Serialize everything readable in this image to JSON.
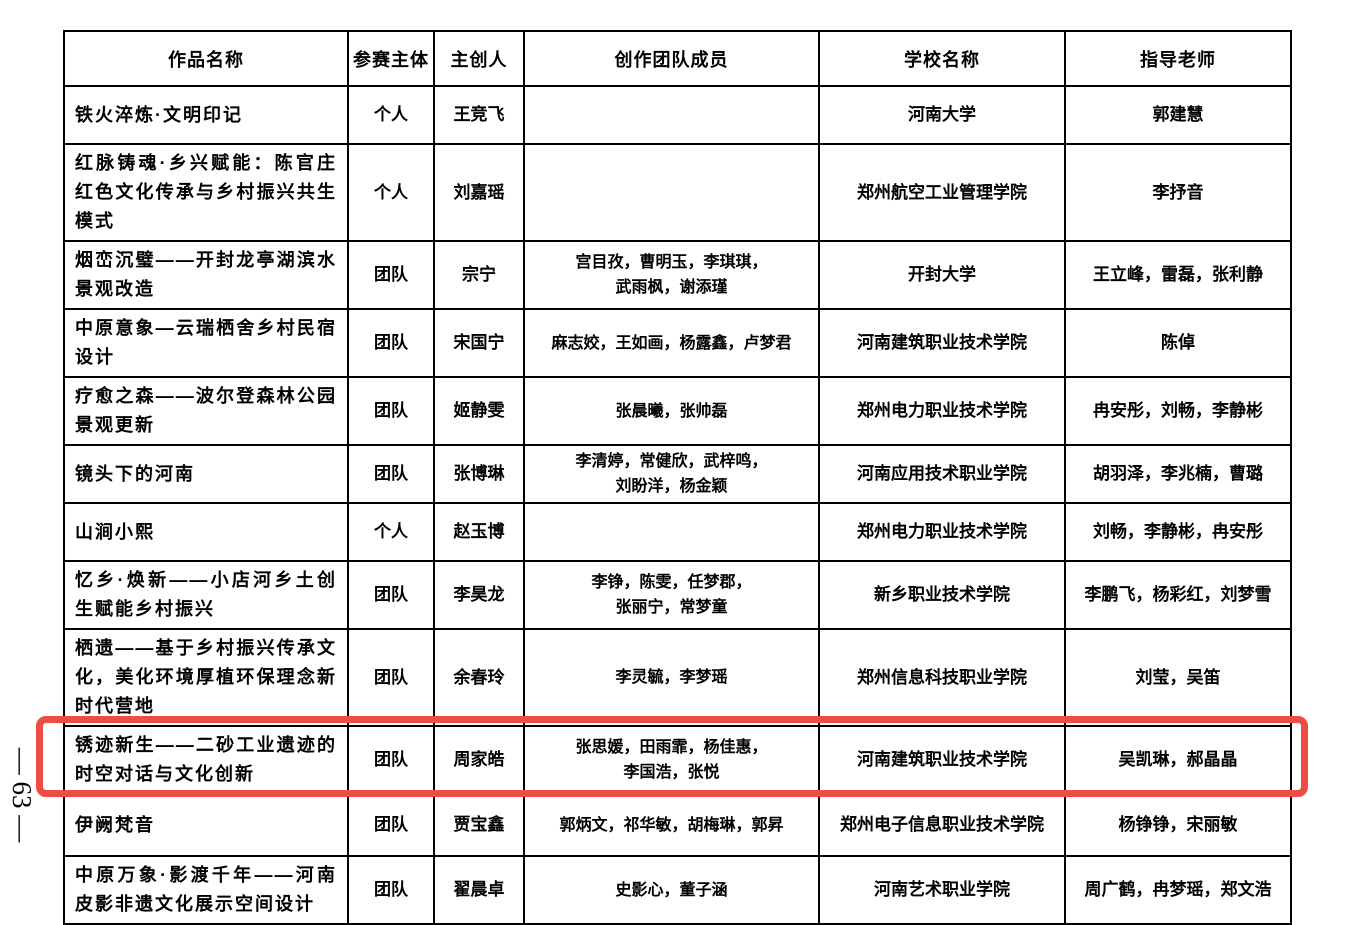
{
  "page": {
    "number_label": "— 63 —"
  },
  "colors": {
    "highlight_border": "#ee4d45",
    "table_border": "#000000"
  },
  "table": {
    "headers": [
      "作品名称",
      "参赛主体",
      "主创人",
      "创作团队成员",
      "学校名称",
      "指导老师"
    ],
    "rows": [
      {
        "title": "铁火淬炼·文明印记",
        "entry_type": "个人",
        "creator": "王竞飞",
        "members": [],
        "school": "河南大学",
        "advisors": "郭建慧",
        "highlighted": false
      },
      {
        "title": "红脉铸魂·乡兴赋能：陈官庄红色文化传承与乡村振兴共生模式",
        "entry_type": "个人",
        "creator": "刘嘉瑶",
        "members": [],
        "school": "郑州航空工业管理学院",
        "advisors": "李抒音",
        "highlighted": false
      },
      {
        "title": "烟峦沉璧——开封龙亭湖滨水景观改造",
        "entry_type": "团队",
        "creator": "宗宁",
        "members": [
          "宫目孜，曹明玉，李琪琪，",
          "武雨枫，谢添瑾"
        ],
        "school": "开封大学",
        "advisors": "王立峰，雷磊，张利静",
        "highlighted": false
      },
      {
        "title": "中原意象—云瑞栖舍乡村民宿设计",
        "entry_type": "团队",
        "creator": "宋国宁",
        "members": [
          "麻志姣，王如画，杨露鑫，卢梦君"
        ],
        "school": "河南建筑职业技术学院",
        "advisors": "陈倬",
        "highlighted": false
      },
      {
        "title": "疗愈之森——波尔登森林公园景观更新",
        "entry_type": "团队",
        "creator": "姬静雯",
        "members": [
          "张晨曦，张帅磊"
        ],
        "school": "郑州电力职业技术学院",
        "advisors": "冉安彤，刘畅，李静彬",
        "highlighted": false
      },
      {
        "title": "镜头下的河南",
        "entry_type": "团队",
        "creator": "张博琳",
        "members": [
          "李清婷，常健欣，武梓鸣，",
          "刘盼洋，杨金颖"
        ],
        "school": "河南应用技术职业学院",
        "advisors": "胡羽泽，李兆楠，曹璐",
        "highlighted": false
      },
      {
        "title": "山涧小熙",
        "entry_type": "个人",
        "creator": "赵玉博",
        "members": [],
        "school": "郑州电力职业技术学院",
        "advisors": "刘畅，李静彬，冉安彤",
        "highlighted": false
      },
      {
        "title": "忆乡·焕新——小店河乡土创生赋能乡村振兴",
        "entry_type": "团队",
        "creator": "李昊龙",
        "members": [
          "李铮，陈雯，任梦郡，",
          "张丽宁，常梦童"
        ],
        "school": "新乡职业技术学院",
        "advisors": "李鹏飞，杨彩红，刘梦雪",
        "highlighted": false
      },
      {
        "title": "栖遗——基于乡村振兴传承文化，美化环境厚植环保理念新时代营地",
        "entry_type": "团队",
        "creator": "余春玲",
        "members": [
          "李灵毓，李梦瑶"
        ],
        "school": "郑州信息科技职业学院",
        "advisors": "刘莹，吴笛",
        "highlighted": false
      },
      {
        "title": "锈迹新生——二砂工业遗迹的时空对话与文化创新",
        "entry_type": "团队",
        "creator": "周家皓",
        "members": [
          "张思媛，田雨霏，杨佳惠，",
          "李国浩，张悦"
        ],
        "school": "河南建筑职业技术学院",
        "advisors": "吴凯琳，郝晶晶",
        "highlighted": false
      },
      {
        "title": "伊阙梵音",
        "entry_type": "团队",
        "creator": "贾宝鑫",
        "members": [
          "郭炳文，祁华敏，胡梅琳，郭昇"
        ],
        "school": "郑州电子信息职业技术学院",
        "advisors": "杨铮铮，宋丽敏",
        "highlighted": true
      },
      {
        "title": "中原万象·影渡千年——河南皮影非遗文化展示空间设计",
        "entry_type": "团队",
        "creator": "翟晨卓",
        "members": [
          "史影心，董子涵"
        ],
        "school": "河南艺术职业学院",
        "advisors": "周广鹤，冉梦瑶，郑文浩",
        "highlighted": false
      }
    ]
  }
}
